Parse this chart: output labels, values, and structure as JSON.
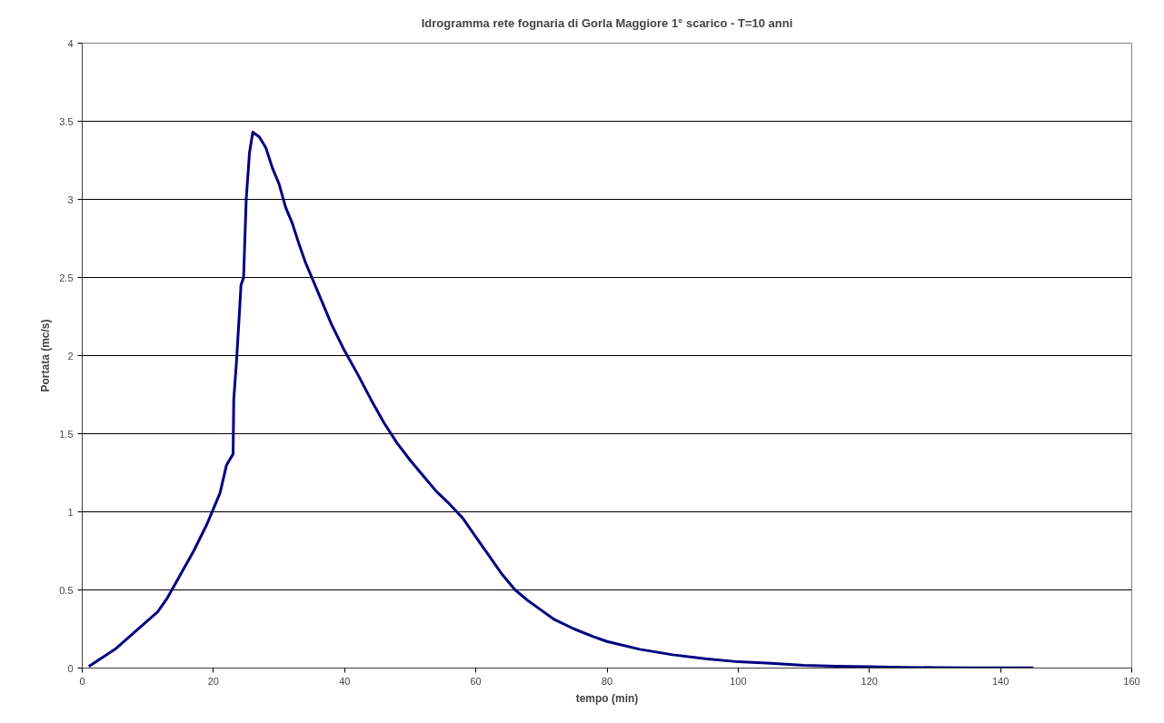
{
  "chart_data": {
    "type": "line",
    "title": "Idrogramma rete fognaria di Gorla Maggiore 1° scarico - T=10 anni",
    "xlabel": "tempo (min)",
    "ylabel": "Portata (mc/s)",
    "xlim": [
      0,
      160
    ],
    "ylim": [
      0,
      4
    ],
    "xticks": [
      0,
      20,
      40,
      60,
      80,
      100,
      120,
      140,
      160
    ],
    "yticks": [
      0,
      0.5,
      1,
      1.5,
      2,
      2.5,
      3,
      3.5,
      4
    ],
    "grid": "y",
    "marker": "none",
    "line_style": "solid",
    "x": [
      1,
      5,
      11.5,
      13,
      15,
      17,
      19,
      20,
      21,
      22,
      23,
      23.1,
      23.5,
      24,
      24.2,
      24.6,
      25,
      25.5,
      26,
      27,
      28,
      29,
      30,
      31,
      32,
      33,
      34,
      35,
      36,
      37,
      38,
      40,
      42,
      44,
      46,
      48,
      50,
      52,
      54,
      56,
      58,
      60,
      62,
      64,
      66,
      68,
      70,
      72,
      75,
      78,
      80,
      85,
      90,
      95,
      100,
      105,
      110,
      115,
      120,
      125,
      130,
      135,
      140,
      145
    ],
    "series": [
      {
        "color": "#000080",
        "values": [
          0.01,
          0.12,
          0.36,
          0.45,
          0.6,
          0.75,
          0.92,
          1.02,
          1.12,
          1.3,
          1.37,
          1.72,
          1.95,
          2.3,
          2.45,
          2.5,
          3.0,
          3.3,
          3.43,
          3.4,
          3.33,
          3.2,
          3.1,
          2.95,
          2.85,
          2.72,
          2.6,
          2.5,
          2.4,
          2.3,
          2.2,
          2.03,
          1.88,
          1.72,
          1.57,
          1.44,
          1.33,
          1.23,
          1.13,
          1.05,
          0.96,
          0.84,
          0.72,
          0.6,
          0.5,
          0.43,
          0.37,
          0.31,
          0.25,
          0.2,
          0.17,
          0.12,
          0.085,
          0.06,
          0.04,
          0.03,
          0.018,
          0.012,
          0.008,
          0.005,
          0.003,
          0.002,
          0.001,
          0.001
        ]
      }
    ]
  }
}
